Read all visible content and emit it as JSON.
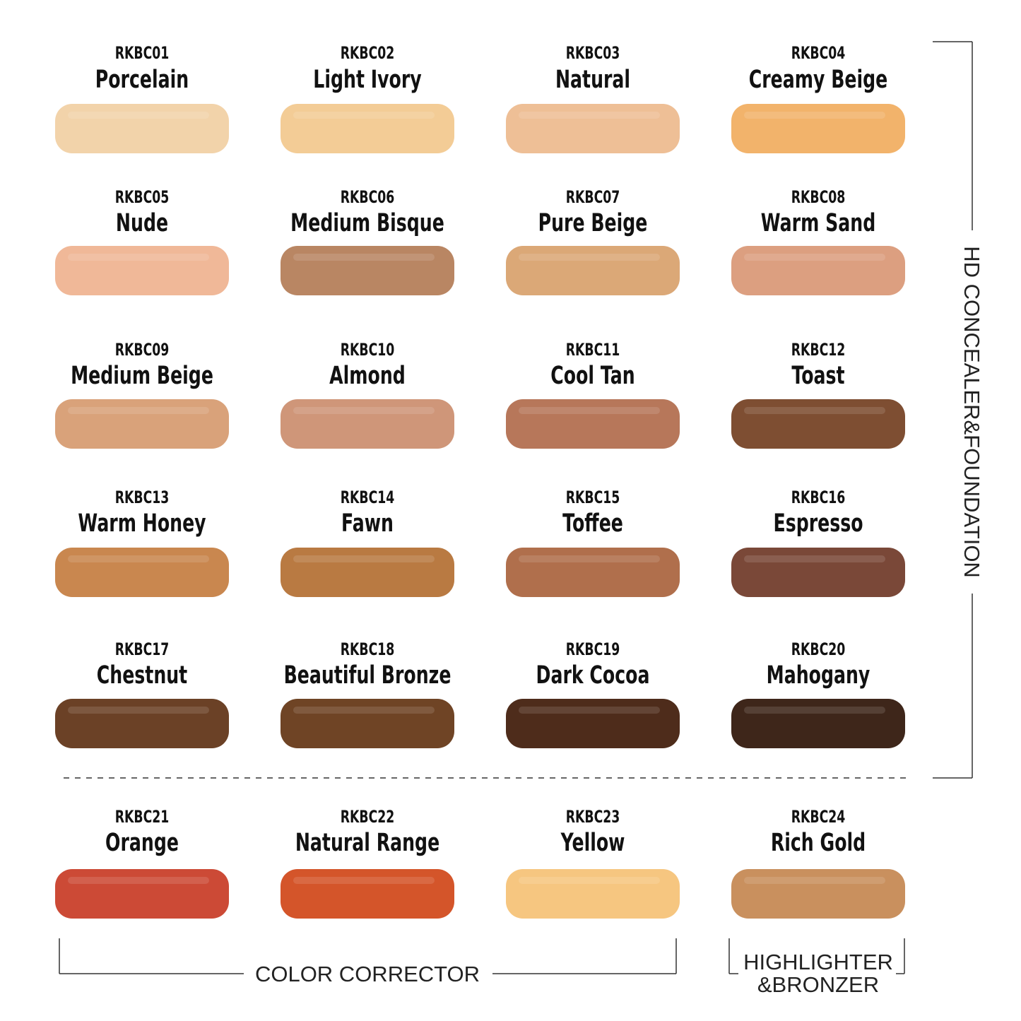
{
  "swatches": [
    {
      "code": "RKBC01",
      "name": "Porcelain",
      "color": "#f2d3aa"
    },
    {
      "code": "RKBC02",
      "name": "Light Ivory",
      "color": "#f3cc96"
    },
    {
      "code": "RKBC03",
      "name": "Natural",
      "color": "#eebf96"
    },
    {
      "code": "RKBC04",
      "name": "Creamy Beige",
      "color": "#f2b36b"
    },
    {
      "code": "RKBC05",
      "name": "Nude",
      "color": "#f0b898"
    },
    {
      "code": "RKBC06",
      "name": "Medium Bisque",
      "color": "#b98663"
    },
    {
      "code": "RKBC07",
      "name": "Pure Beige",
      "color": "#dba877"
    },
    {
      "code": "RKBC08",
      "name": "Warm Sand",
      "color": "#dc9f80"
    },
    {
      "code": "RKBC09",
      "name": "Medium Beige",
      "color": "#d9a27a"
    },
    {
      "code": "RKBC10",
      "name": "Almond",
      "color": "#cf9679"
    },
    {
      "code": "RKBC11",
      "name": "Cool Tan",
      "color": "#b7775a"
    },
    {
      "code": "RKBC12",
      "name": "Toast",
      "color": "#7e4e32"
    },
    {
      "code": "RKBC13",
      "name": "Warm Honey",
      "color": "#c9874f"
    },
    {
      "code": "RKBC14",
      "name": "Fawn",
      "color": "#b97a42"
    },
    {
      "code": "RKBC15",
      "name": "Toffee",
      "color": "#b06f4c"
    },
    {
      "code": "RKBC16",
      "name": "Espresso",
      "color": "#7a4838"
    },
    {
      "code": "RKBC17",
      "name": "Chestnut",
      "color": "#6b4126"
    },
    {
      "code": "RKBC18",
      "name": "Beautiful Bronze",
      "color": "#6f4425"
    },
    {
      "code": "RKBC19",
      "name": "Dark Cocoa",
      "color": "#4e2c1b"
    },
    {
      "code": "RKBC20",
      "name": "Mahogany",
      "color": "#3e261a"
    },
    {
      "code": "RKBC21",
      "name": "Orange",
      "color": "#cc4a36"
    },
    {
      "code": "RKBC22",
      "name": "Natural Range",
      "color": "#d4552a"
    },
    {
      "code": "RKBC23",
      "name": "Yellow",
      "color": "#f6c680"
    },
    {
      "code": "RKBC24",
      "name": "Rich Gold",
      "color": "#c9905e"
    }
  ],
  "groups": {
    "foundation": "HD CONCEALER&FOUNDATION",
    "corrector": "COLOR CORRECTOR",
    "highlighter": [
      "HIGHLIGHTER",
      "&BRONZER"
    ]
  }
}
